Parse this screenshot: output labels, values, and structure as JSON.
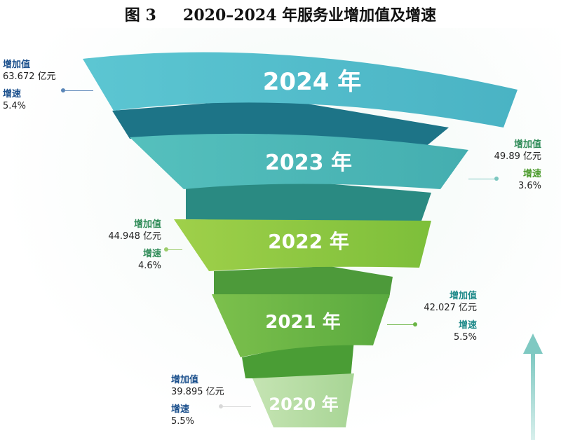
{
  "title": "图 3     2020–2024 年服务业增加值及增速",
  "bands": [
    {
      "year_label": "2024 年",
      "value_label": "增加值",
      "value": "63.672 亿元",
      "growth_label": "增速",
      "growth": "5.4%",
      "color": "#5bc2cf"
    },
    {
      "year_label": "2023 年",
      "value_label": "增加值",
      "value": "49.89 亿元",
      "growth_label": "增速",
      "growth": "3.6%",
      "color": "#4fb8b5"
    },
    {
      "year_label": "2022 年",
      "value_label": "增加值",
      "value": "44.948 亿元",
      "growth_label": "增速",
      "growth": "4.6%",
      "color": "#8cc63f"
    },
    {
      "year_label": "2021 年",
      "value_label": "增加值",
      "value": "42.027 亿元",
      "growth_label": "增速",
      "growth": "5.5%",
      "color": "#6ab545"
    },
    {
      "year_label": "2020 年",
      "value_label": "增加值",
      "value": "39.895 亿元",
      "growth_label": "增速",
      "growth": "5.5%",
      "color": "#b9dda5"
    }
  ],
  "colors": {
    "title": "#111111",
    "label_blue": "#1a4f8c",
    "label_green": "#2e8b57",
    "label_teal": "#1f8a8a",
    "fold_dark_teal": "#1d7487",
    "fold_teal": "#2a8a82",
    "fold_green": "#4d9a3a",
    "arrow": "#8fd0c8"
  }
}
